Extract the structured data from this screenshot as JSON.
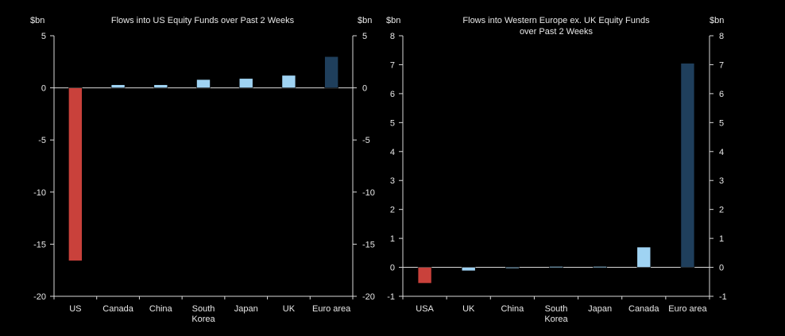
{
  "colors": {
    "background": "#000000",
    "axis": "#d9d9d9",
    "text": "#e8e8e8",
    "negative_bar": "#c9413b",
    "positive_bar": "#9fd3f3",
    "highlight_bar": "#1f3f5c"
  },
  "chart_data": [
    {
      "type": "bar",
      "title": "Flows into US Equity Funds over Past 2 Weeks",
      "title_lines": [
        "Flows into US Equity Funds over Past 2 Weeks"
      ],
      "unit_left": "$bn",
      "unit_right": "$bn",
      "categories": [
        "US",
        "Canada",
        "China",
        "South Korea",
        "Japan",
        "UK",
        "Euro area"
      ],
      "category_lines": [
        [
          "US"
        ],
        [
          "Canada"
        ],
        [
          "China"
        ],
        [
          "South",
          "Korea"
        ],
        [
          "Japan"
        ],
        [
          "UK"
        ],
        [
          "Euro area"
        ]
      ],
      "values": [
        -16.6,
        0.3,
        0.3,
        0.8,
        0.9,
        1.2,
        3.0
      ],
      "bar_colors": [
        "negative_bar",
        "positive_bar",
        "positive_bar",
        "positive_bar",
        "positive_bar",
        "positive_bar",
        "highlight_bar"
      ],
      "ylim": [
        -20,
        5
      ],
      "yticks": [
        5,
        0,
        -5,
        -10,
        -15,
        -20
      ],
      "grid": false,
      "legend": "none"
    },
    {
      "type": "bar",
      "title": "Flows into Western Europe ex. UK Equity Funds over Past 2 Weeks",
      "title_lines": [
        "Flows into Western Europe ex. UK Equity Funds",
        "over Past 2 Weeks"
      ],
      "unit_left": "$bn",
      "unit_right": "$bn",
      "categories": [
        "USA",
        "UK",
        "China",
        "South Korea",
        "Japan",
        "Canada",
        "Euro area"
      ],
      "category_lines": [
        [
          "USA"
        ],
        [
          "UK"
        ],
        [
          "China"
        ],
        [
          "South",
          "Korea"
        ],
        [
          "Japan"
        ],
        [
          "Canada"
        ],
        [
          "Euro area"
        ]
      ],
      "values": [
        -0.55,
        -0.12,
        -0.03,
        0.02,
        0.02,
        0.7,
        7.05
      ],
      "bar_colors": [
        "negative_bar",
        "positive_bar",
        "positive_bar",
        "positive_bar",
        "positive_bar",
        "positive_bar",
        "highlight_bar"
      ],
      "ylim": [
        -1,
        8
      ],
      "yticks": [
        8,
        7,
        6,
        5,
        4,
        3,
        2,
        1,
        0,
        -1
      ],
      "grid": false,
      "legend": "none"
    }
  ]
}
